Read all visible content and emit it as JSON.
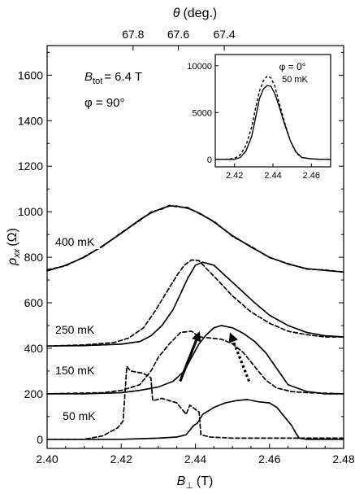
{
  "chart_data": [
    {
      "type": "line",
      "xlabel_symbol": "B",
      "xlabel_sub": "⊥",
      "xlabel_unit": "(T)",
      "ylabel_symbol": "ρ",
      "ylabel_sub": "xx",
      "ylabel_unit": "(Ω)",
      "top_axis_symbol": "θ",
      "top_axis_unit": "(deg.)",
      "xlim": [
        2.4,
        2.48
      ],
      "ylim": [
        -40,
        1730
      ],
      "xticks": [
        2.4,
        2.42,
        2.44,
        2.46,
        2.48
      ],
      "xtick_labels": [
        "2.40",
        "2.42",
        "2.44",
        "2.46",
        "2.48"
      ],
      "yticks": [
        0,
        200,
        400,
        600,
        800,
        1000,
        1200,
        1400,
        1600
      ],
      "ytick_labels": [
        "0",
        "200",
        "400",
        "600",
        "800",
        "1000",
        "1200",
        "1400",
        "1600"
      ],
      "top_ticks": [
        {
          "B": 2.4232,
          "label": "67.8"
        },
        {
          "B": 2.4354,
          "label": "67.6"
        },
        {
          "B": 2.4478,
          "label": "67.4"
        }
      ],
      "annotation_btot_symbol": "B",
      "annotation_btot_sub": "tot",
      "annotation_btot_value": "= 6.4 T",
      "annotation_phi": "φ = 90°",
      "grid": false,
      "series": [
        {
          "name": "400 mK",
          "style": "solid",
          "x": [
            2.4,
            2.405,
            2.41,
            2.415,
            2.42,
            2.425,
            2.428,
            2.431,
            2.433,
            2.435,
            2.438,
            2.441,
            2.445,
            2.45,
            2.455,
            2.46,
            2.465,
            2.47,
            2.475,
            2.48
          ],
          "y": [
            740,
            765,
            800,
            850,
            905,
            965,
            995,
            1015,
            1025,
            1025,
            1015,
            995,
            955,
            895,
            845,
            800,
            770,
            750,
            742,
            735
          ]
        },
        {
          "name": "400 mK",
          "style": "dashed",
          "x": [
            2.4,
            2.405,
            2.41,
            2.415,
            2.42,
            2.425,
            2.428,
            2.431,
            2.433,
            2.435,
            2.438,
            2.441,
            2.445,
            2.45,
            2.455,
            2.46,
            2.465,
            2.47,
            2.475,
            2.48
          ],
          "y": [
            745,
            762,
            802,
            848,
            908,
            962,
            998,
            1012,
            1028,
            1022,
            1018,
            992,
            958,
            892,
            848,
            798,
            772,
            748,
            744,
            735
          ]
        },
        {
          "name": "250 mK",
          "style": "solid",
          "x": [
            2.4,
            2.41,
            2.42,
            2.425,
            2.428,
            2.431,
            2.434,
            2.436,
            2.438,
            2.44,
            2.442,
            2.445,
            2.448,
            2.452,
            2.456,
            2.46,
            2.465,
            2.47,
            2.475,
            2.48
          ],
          "y": [
            410,
            412,
            418,
            430,
            455,
            500,
            570,
            640,
            710,
            765,
            778,
            765,
            720,
            660,
            600,
            545,
            500,
            470,
            455,
            450
          ]
        },
        {
          "name": "250 mK",
          "style": "dashed",
          "x": [
            2.4,
            2.41,
            2.418,
            2.422,
            2.426,
            2.429,
            2.432,
            2.435,
            2.437,
            2.439,
            2.441,
            2.443,
            2.446,
            2.45,
            2.455,
            2.46,
            2.465,
            2.47,
            2.475,
            2.48
          ],
          "y": [
            410,
            415,
            425,
            445,
            490,
            560,
            640,
            720,
            765,
            788,
            785,
            750,
            700,
            630,
            560,
            510,
            475,
            460,
            450,
            450
          ]
        },
        {
          "name": "150 mK",
          "style": "solid",
          "x": [
            2.4,
            2.41,
            2.42,
            2.425,
            2.43,
            2.434,
            2.437,
            2.439,
            2.441,
            2.443,
            2.445,
            2.447,
            2.45,
            2.453,
            2.456,
            2.459,
            2.462,
            2.465,
            2.47,
            2.475,
            2.48
          ],
          "y": [
            200,
            200,
            205,
            215,
            230,
            255,
            300,
            360,
            420,
            460,
            490,
            500,
            490,
            465,
            430,
            380,
            310,
            240,
            210,
            200,
            200
          ]
        },
        {
          "name": "150 mK",
          "style": "dashed",
          "x": [
            2.4,
            2.415,
            2.42,
            2.425,
            2.428,
            2.43,
            2.433,
            2.436,
            2.439,
            2.441,
            2.444,
            2.447,
            2.45,
            2.453,
            2.456,
            2.459,
            2.462,
            2.466,
            2.47,
            2.48
          ],
          "y": [
            200,
            205,
            215,
            240,
            300,
            360,
            420,
            470,
            475,
            450,
            445,
            440,
            420,
            380,
            320,
            260,
            225,
            210,
            205,
            200
          ]
        },
        {
          "name": "50 mK",
          "style": "solid",
          "x": [
            2.4,
            2.42,
            2.43,
            2.435,
            2.4375,
            2.4385,
            2.4395,
            2.4405,
            2.442,
            2.445,
            2.448,
            2.451,
            2.454,
            2.457,
            2.46,
            2.462,
            2.464,
            2.466,
            2.467,
            2.468,
            2.47,
            2.475,
            2.48
          ],
          "y": [
            0,
            0,
            5,
            10,
            20,
            40,
            60,
            70,
            110,
            140,
            160,
            170,
            175,
            165,
            160,
            140,
            100,
            60,
            30,
            5,
            0,
            0,
            0
          ]
        },
        {
          "name": "50 mK",
          "style": "dashed",
          "x": [
            2.4,
            2.41,
            2.415,
            2.419,
            2.4205,
            2.4215,
            2.4225,
            2.426,
            2.428,
            2.4285,
            2.431,
            2.435,
            2.4375,
            2.4385,
            2.441,
            2.4415,
            2.444,
            2.45,
            2.455,
            2.46,
            2.465,
            2.47,
            2.48
          ],
          "y": [
            0,
            0,
            15,
            50,
            80,
            320,
            300,
            290,
            270,
            170,
            180,
            160,
            110,
            150,
            120,
            20,
            10,
            5,
            5,
            5,
            5,
            5,
            5
          ]
        }
      ],
      "curve_labels": [
        {
          "series": "400 mK",
          "x": 2.4022,
          "y": 850,
          "text": "400 mK"
        },
        {
          "series": "250 mK",
          "x": 2.4022,
          "y": 465,
          "text": "250 mK"
        },
        {
          "series": "150 mK",
          "x": 2.4022,
          "y": 285,
          "text": "150 mK"
        },
        {
          "series": "50 mK",
          "x": 2.4042,
          "y": 85,
          "text": "50 mK"
        }
      ],
      "arrows": [
        {
          "style": "solid",
          "from": [
            2.4359,
            255
          ],
          "to": [
            2.4412,
            475
          ]
        },
        {
          "style": "dotted",
          "from": [
            2.4545,
            255
          ],
          "to": [
            2.4493,
            470
          ]
        }
      ]
    },
    {
      "type": "line",
      "inset": true,
      "xlim": [
        2.41,
        2.47
      ],
      "ylim": [
        -800,
        11200
      ],
      "xticks": [
        2.42,
        2.44,
        2.46
      ],
      "xtick_labels": [
        "2.42",
        "2.44",
        "2.46"
      ],
      "yticks": [
        0,
        5000,
        10000
      ],
      "ytick_labels": [
        "0",
        "5000",
        "10000"
      ],
      "annotation_phi": "φ = 0°",
      "annotation_temp": "50 mK",
      "series": [
        {
          "style": "solid",
          "x": [
            2.41,
            2.415,
            2.42,
            2.423,
            2.426,
            2.429,
            2.431,
            2.433,
            2.435,
            2.437,
            2.439,
            2.441,
            2.443,
            2.446,
            2.449,
            2.452,
            2.455,
            2.46,
            2.465,
            2.47
          ],
          "y": [
            0,
            0,
            0,
            200,
            900,
            2500,
            4500,
            6500,
            7500,
            7900,
            7800,
            7000,
            5800,
            3800,
            2000,
            800,
            200,
            50,
            0,
            0
          ]
        },
        {
          "style": "dashed",
          "x": [
            2.41,
            2.415,
            2.42,
            2.423,
            2.426,
            2.429,
            2.431,
            2.433,
            2.435,
            2.437,
            2.439,
            2.441,
            2.443,
            2.446,
            2.449,
            2.452,
            2.455,
            2.46,
            2.465,
            2.47
          ],
          "y": [
            0,
            0,
            100,
            500,
            1500,
            3500,
            5500,
            7300,
            8400,
            8900,
            8700,
            7800,
            6200,
            4000,
            2000,
            700,
            200,
            50,
            0,
            0
          ]
        }
      ]
    }
  ]
}
